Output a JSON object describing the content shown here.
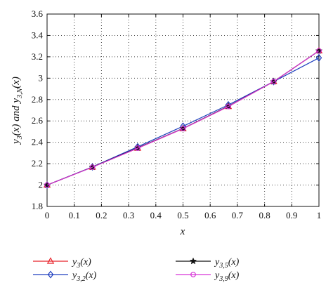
{
  "chart_data": {
    "type": "line",
    "xlabel": "x",
    "ylabel": "y3(x) and y3,N(x)",
    "xlim": [
      0,
      1
    ],
    "ylim": [
      1.8,
      3.6
    ],
    "x_ticks": [
      "0",
      "0.1",
      "0.2",
      "0.3",
      "0.4",
      "0.5",
      "0.6",
      "0.7",
      "0.8",
      "0.9",
      "1"
    ],
    "y_ticks": [
      "1.8",
      "2",
      "2.2",
      "2.4",
      "2.6",
      "2.8",
      "3",
      "3.2",
      "3.4",
      "3.6"
    ],
    "grid": true,
    "legend_position": "bottom",
    "x": [
      0,
      0.1667,
      0.3333,
      0.5,
      0.6667,
      0.8333,
      1
    ],
    "series": [
      {
        "name": "y3(x)",
        "color": "#e8232a",
        "marker": "triangle",
        "values": [
          2.0,
          2.168,
          2.345,
          2.528,
          2.735,
          2.968,
          3.256
        ]
      },
      {
        "name": "y3,2(x)",
        "color": "#1f3fbf",
        "marker": "diamond",
        "values": [
          2.0,
          2.17,
          2.358,
          2.55,
          2.75,
          2.968,
          3.19
        ]
      },
      {
        "name": "y3,5(x)",
        "color": "#111111",
        "marker": "star",
        "values": [
          2.0,
          2.168,
          2.348,
          2.53,
          2.738,
          2.968,
          3.256
        ]
      },
      {
        "name": "y3,9(x)",
        "color": "#d633d6",
        "marker": "circle",
        "values": [
          2.0,
          2.167,
          2.345,
          2.528,
          2.735,
          2.968,
          3.256
        ]
      }
    ],
    "legend": [
      {
        "series": 0,
        "main": "y",
        "sub": "3",
        "arg": "(x)"
      },
      {
        "series": 1,
        "main": "y",
        "sub": "3,2",
        "arg": "(x)"
      },
      {
        "series": 2,
        "main": "y",
        "sub": "3,5",
        "arg": "(x)"
      },
      {
        "series": 3,
        "main": "y",
        "sub": "3,9",
        "arg": "(x)"
      }
    ],
    "ylabel_parts": {
      "a_main": "y",
      "a_sub": "3",
      "a_arg": "(x) and ",
      "b_main": "y",
      "b_sub": "3,N",
      "b_arg": "(x)"
    }
  }
}
